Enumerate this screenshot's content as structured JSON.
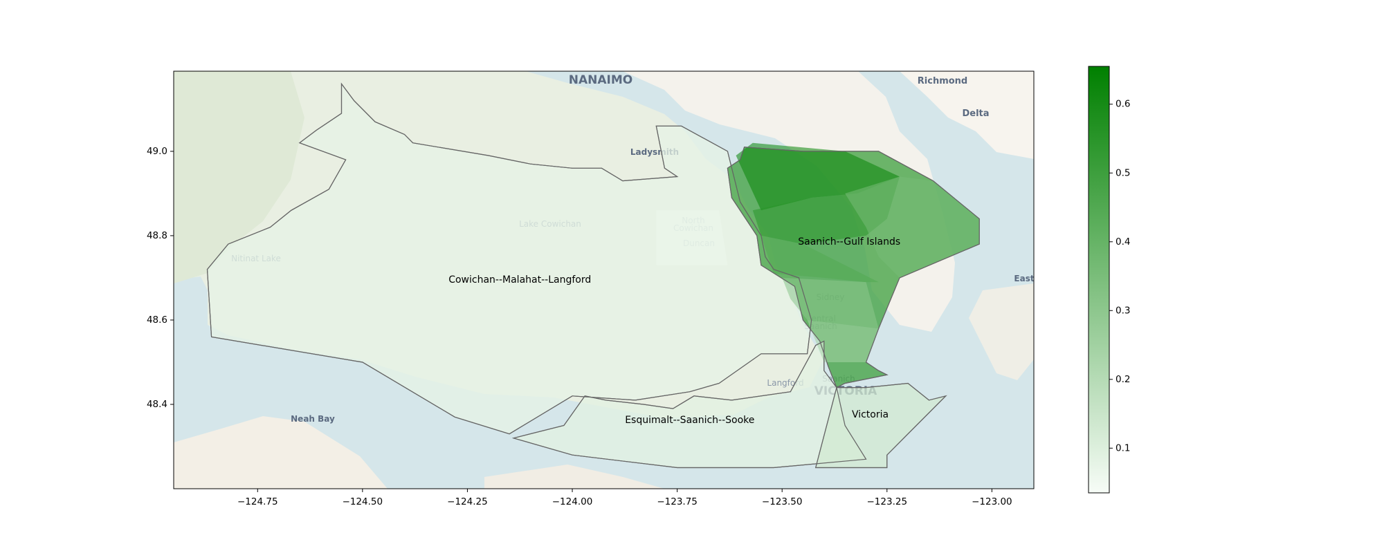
{
  "chart_data": {
    "type": "choropleth",
    "xlim": [
      -124.95,
      -122.9
    ],
    "ylim": [
      48.2,
      49.19
    ],
    "xticks": [
      {
        "value": -124.75,
        "label": "−124.75"
      },
      {
        "value": -124.5,
        "label": "−124.50"
      },
      {
        "value": -124.25,
        "label": "−124.25"
      },
      {
        "value": -124.0,
        "label": "−124.00"
      },
      {
        "value": -123.75,
        "label": "−123.75"
      },
      {
        "value": -123.5,
        "label": "−123.50"
      },
      {
        "value": -123.25,
        "label": "−123.25"
      },
      {
        "value": -123.0,
        "label": "−123.00"
      }
    ],
    "yticks": [
      {
        "value": 48.4,
        "label": "48.4"
      },
      {
        "value": 48.6,
        "label": "48.6"
      },
      {
        "value": 48.8,
        "label": "48.8"
      },
      {
        "value": 49.0,
        "label": "49.0"
      }
    ],
    "colorbar": {
      "min": 0.035,
      "max": 0.655,
      "color_low": "#f7fcf7",
      "color_high": "#008000",
      "ticks": [
        {
          "value": 0.1,
          "label": "0.1"
        },
        {
          "value": 0.2,
          "label": "0.2"
        },
        {
          "value": 0.3,
          "label": "0.3"
        },
        {
          "value": 0.4,
          "label": "0.4"
        },
        {
          "value": 0.5,
          "label": "0.5"
        },
        {
          "value": 0.6,
          "label": "0.6"
        }
      ]
    },
    "districts": [
      {
        "name": "Cowichan--Malahat--Langford",
        "value": 0.08,
        "label_at": [
          -124.125,
          48.695
        ]
      },
      {
        "name": "Saanich--Gulf Islands",
        "value": 0.5,
        "label_at": [
          -123.34,
          48.785
        ]
      },
      {
        "name": "Esquimalt--Saanich--Sooke",
        "value": 0.09,
        "label_at": [
          -123.72,
          48.362
        ]
      },
      {
        "name": "Victoria",
        "value": 0.13,
        "label_at": [
          -123.29,
          48.375
        ]
      }
    ],
    "sub_areas": [
      {
        "value": 0.63
      },
      {
        "value": 0.55
      },
      {
        "value": 0.45
      },
      {
        "value": 0.36
      },
      {
        "value": 0.3
      },
      {
        "value": 0.24
      },
      {
        "value": 0.06
      }
    ]
  },
  "basemap_labels": [
    {
      "text": "NANAIMO",
      "style": "major"
    },
    {
      "text": "Richmond",
      "style": "major"
    },
    {
      "text": "Delta",
      "style": "major"
    },
    {
      "text": "Ladysmith",
      "style": "major"
    },
    {
      "text": "North",
      "style": "faint"
    },
    {
      "text": "Cowichan",
      "style": "faint"
    },
    {
      "text": "Duncan",
      "style": "faint"
    },
    {
      "text": "Lake Cowichan",
      "style": "faint"
    },
    {
      "text": "Nitinat Lake",
      "style": "faint"
    },
    {
      "text": "Sidney",
      "style": "faint"
    },
    {
      "text": "Central",
      "style": "faint"
    },
    {
      "text": "Saanich",
      "style": "faint"
    },
    {
      "text": "Langford",
      "style": "faint"
    },
    {
      "text": "Saanich",
      "style": "faint"
    },
    {
      "text": "VICTORIA",
      "style": "major"
    },
    {
      "text": "Neah Bay",
      "style": "major"
    },
    {
      "text": "East",
      "style": "major"
    }
  ]
}
